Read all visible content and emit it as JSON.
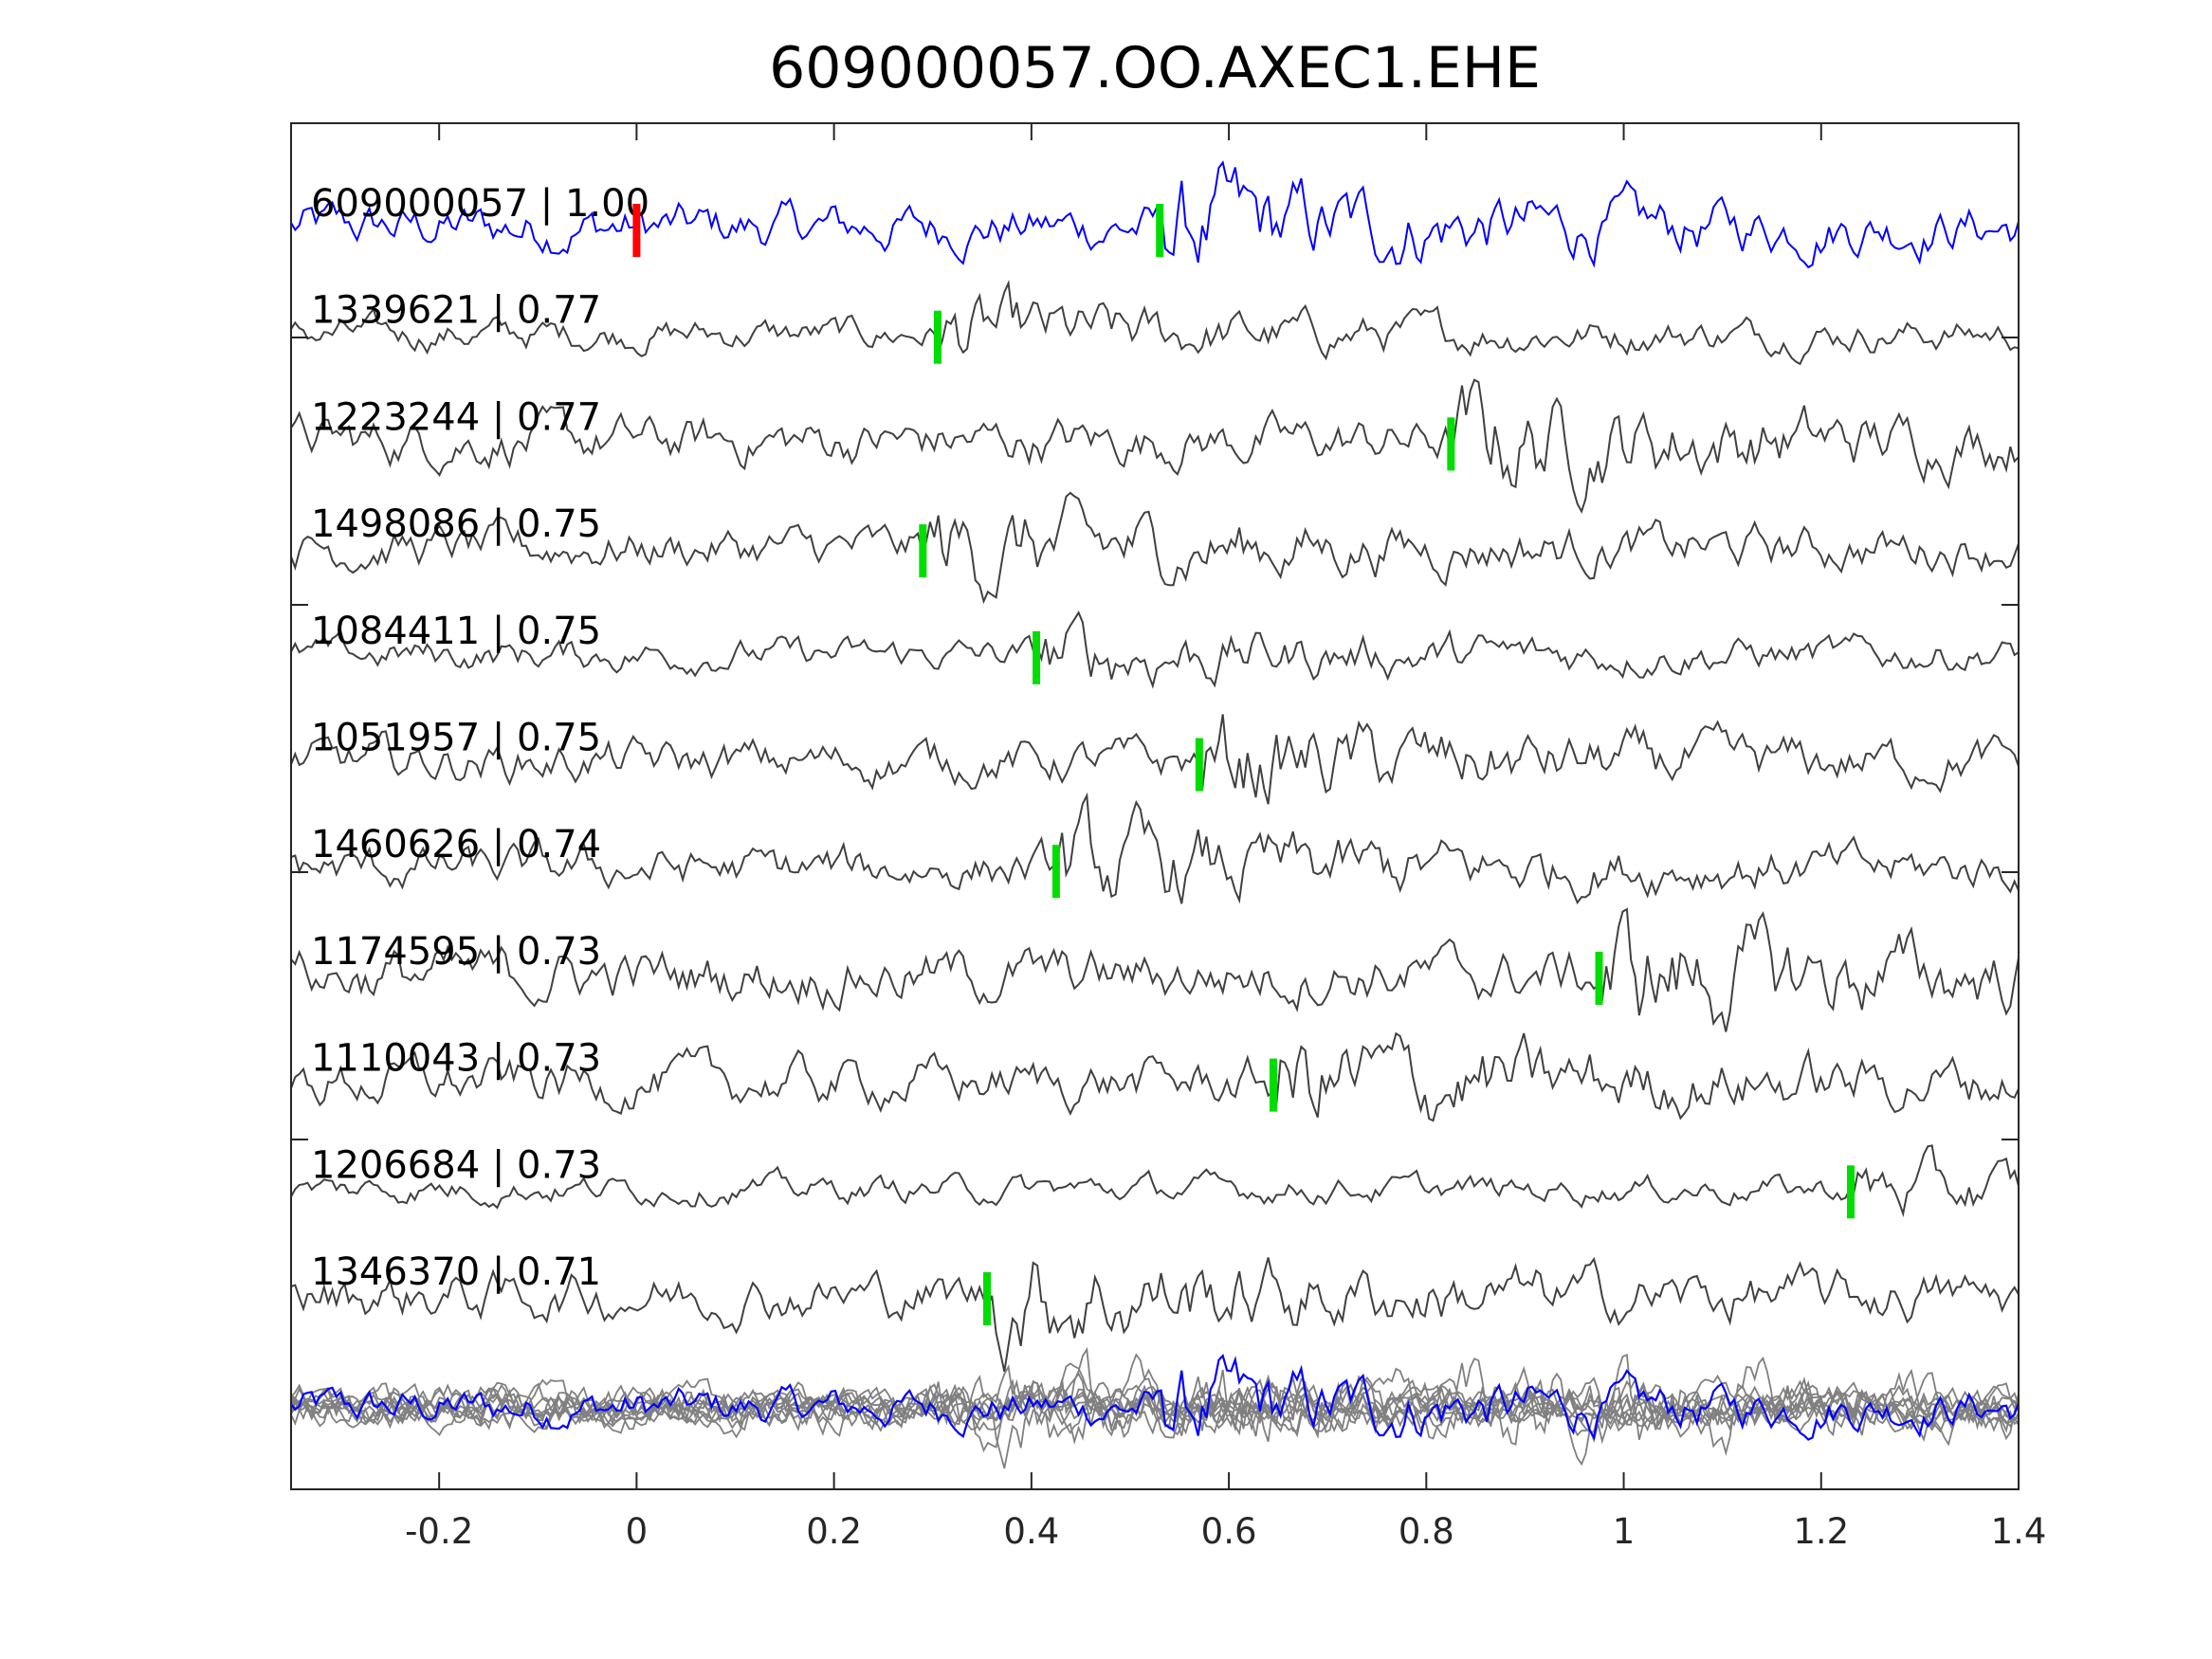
{
  "chart_data": {
    "type": "line",
    "title": "609000057.OO.AXEC1.EHE",
    "xlabel": "",
    "ylabel": "",
    "xlim": [
      -0.35,
      1.4
    ],
    "xticks": [
      "-0.2",
      "0",
      "0.2",
      "0.4",
      "0.6",
      "0.8",
      "1",
      "1.2",
      "1.4"
    ],
    "xtick_values": [
      -0.2,
      0,
      0.2,
      0.4,
      0.6,
      0.8,
      1,
      1.2,
      1.4
    ],
    "grid": false,
    "colors": {
      "reference": "#0000ff",
      "trace": "#404040",
      "stack": "#808080",
      "pick_reference": "#ff0000",
      "pick": "#00dd00"
    },
    "traces": [
      {
        "id": "609000057",
        "cc": "1.00",
        "label": "609000057 | 1.00",
        "reference": true,
        "pick_ref": 0.0,
        "pick": 0.53,
        "amp": 0.9
      },
      {
        "id": "1339621",
        "cc": "0.77",
        "label": "1339621 | 0.77",
        "pick": 0.305,
        "amp": 0.6
      },
      {
        "id": "1223244",
        "cc": "0.77",
        "label": "1223244 | 0.77",
        "pick": 0.825,
        "amp": 0.9
      },
      {
        "id": "1498086",
        "cc": "0.75",
        "label": "1498086 | 0.75",
        "pick": 0.29,
        "amp": 0.8
      },
      {
        "id": "1084411",
        "cc": "0.75",
        "label": "1084411 | 0.75",
        "pick": 0.405,
        "amp": 0.6
      },
      {
        "id": "1051957",
        "cc": "0.75",
        "label": "1051957 | 0.75",
        "pick": 0.57,
        "amp": 0.8
      },
      {
        "id": "1460626",
        "cc": "0.74",
        "label": "1460626 | 0.74",
        "pick": 0.425,
        "amp": 0.8
      },
      {
        "id": "1174595",
        "cc": "0.73",
        "label": "1174595 | 0.73",
        "pick": 0.975,
        "amp": 1.0
      },
      {
        "id": "1110043",
        "cc": "0.73",
        "label": "1110043 | 0.73",
        "pick": 0.645,
        "amp": 0.9
      },
      {
        "id": "1206684",
        "cc": "0.73",
        "label": "1206684 | 0.73",
        "pick": 1.23,
        "amp": 0.5
      },
      {
        "id": "1346370",
        "cc": "0.71",
        "label": "1346370 | 0.71",
        "pick": 0.355,
        "amp": 0.9
      }
    ]
  }
}
